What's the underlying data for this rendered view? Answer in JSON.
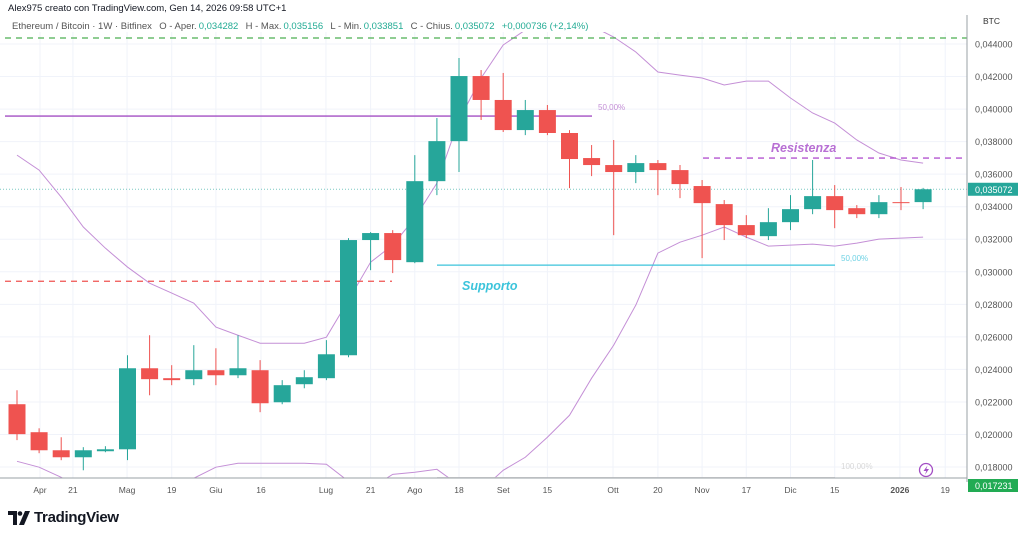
{
  "header": {
    "attribution": "Alex975 creato con TradingView.com, Gen 14, 2026 09:58 UTC+1",
    "symbol": "Ethereum / Bitcoin · 1W · Bitfinex",
    "open_label": "O - Aper.",
    "open": "0,034282",
    "high_label": "H - Max.",
    "high": "0,035156",
    "low_label": "L - Min.",
    "low": "0,033851",
    "close_label": "C - Chius.",
    "close": "0,035072",
    "change": "+0,000736 (+2,14%)"
  },
  "colors": {
    "up": "#26a69a",
    "down": "#ef5350",
    "bands": "#c48fd6",
    "resistance": "#b455d0",
    "support": "#3cc4db",
    "top_line": "#4caf50",
    "bottom_line": "#ef5350",
    "fib_upper": "#a34fc4"
  },
  "price_axis": {
    "unit": "BTC",
    "ticks": [
      "0,044000",
      "0,042000",
      "0,040000",
      "0,038000",
      "0,036000",
      "0,034000",
      "0,032000",
      "0,030000",
      "0,028000",
      "0,026000",
      "0,024000",
      "0,022000",
      "0,020000",
      "0,018000"
    ],
    "current_price": "0,035072",
    "low_marker": "0,017231"
  },
  "time_axis": {
    "labels": [
      "Apr",
      "21",
      "Mag",
      "19",
      "Giu",
      "16",
      "Lug",
      "21",
      "Ago",
      "18",
      "Set",
      "15",
      "Ott",
      "20",
      "Nov",
      "17",
      "Dic",
      "15",
      "2026",
      "19"
    ]
  },
  "annotations": {
    "resistance_label": "Resistenza",
    "support_label": "Supporto",
    "fib_upper_label": "50,00%",
    "fib_support_label": "50,00%",
    "fib_bottom_label": "100,00%"
  },
  "chart_data": {
    "type": "candlestick",
    "ylim": [
      0.0165,
      0.0455
    ],
    "grid": true,
    "candles": [
      {
        "o": 0.02186,
        "h": 0.02272,
        "l": 0.01965,
        "c": 0.02002
      },
      {
        "o": 0.02014,
        "h": 0.02038,
        "l": 0.01885,
        "c": 0.01903
      },
      {
        "o": 0.01903,
        "h": 0.01983,
        "l": 0.01842,
        "c": 0.0186
      },
      {
        "o": 0.0186,
        "h": 0.01922,
        "l": 0.0178,
        "c": 0.01903
      },
      {
        "o": 0.01897,
        "h": 0.01928,
        "l": 0.01891,
        "c": 0.01909
      },
      {
        "o": 0.01909,
        "h": 0.02487,
        "l": 0.01842,
        "c": 0.02407
      },
      {
        "o": 0.02407,
        "h": 0.0261,
        "l": 0.02241,
        "c": 0.0234
      },
      {
        "o": 0.02346,
        "h": 0.02426,
        "l": 0.02303,
        "c": 0.02334
      },
      {
        "o": 0.0234,
        "h": 0.02549,
        "l": 0.02303,
        "c": 0.02395
      },
      {
        "o": 0.02395,
        "h": 0.0253,
        "l": 0.02303,
        "c": 0.02364
      },
      {
        "o": 0.02364,
        "h": 0.0261,
        "l": 0.02346,
        "c": 0.02407
      },
      {
        "o": 0.02395,
        "h": 0.02457,
        "l": 0.02137,
        "c": 0.02192
      },
      {
        "o": 0.02198,
        "h": 0.02334,
        "l": 0.02186,
        "c": 0.02303
      },
      {
        "o": 0.02309,
        "h": 0.02395,
        "l": 0.02284,
        "c": 0.02352
      },
      {
        "o": 0.02346,
        "h": 0.0258,
        "l": 0.02334,
        "c": 0.02493
      },
      {
        "o": 0.02487,
        "h": 0.03207,
        "l": 0.02475,
        "c": 0.03195
      },
      {
        "o": 0.03195,
        "h": 0.03244,
        "l": 0.0301,
        "c": 0.03238
      },
      {
        "o": 0.03238,
        "h": 0.03256,
        "l": 0.02992,
        "c": 0.03072
      },
      {
        "o": 0.03059,
        "h": 0.03717,
        "l": 0.03053,
        "c": 0.03557
      },
      {
        "o": 0.03557,
        "h": 0.03945,
        "l": 0.03471,
        "c": 0.03803
      },
      {
        "o": 0.03803,
        "h": 0.04314,
        "l": 0.03613,
        "c": 0.04203
      },
      {
        "o": 0.04203,
        "h": 0.0424,
        "l": 0.03933,
        "c": 0.04056
      },
      {
        "o": 0.04056,
        "h": 0.04222,
        "l": 0.03859,
        "c": 0.03871
      },
      {
        "o": 0.03871,
        "h": 0.04056,
        "l": 0.0384,
        "c": 0.03994
      },
      {
        "o": 0.03994,
        "h": 0.04025,
        "l": 0.0384,
        "c": 0.03853
      },
      {
        "o": 0.03853,
        "h": 0.03871,
        "l": 0.03514,
        "c": 0.03693
      },
      {
        "o": 0.03699,
        "h": 0.03779,
        "l": 0.03588,
        "c": 0.03656
      },
      {
        "o": 0.03656,
        "h": 0.0381,
        "l": 0.03225,
        "c": 0.03613
      },
      {
        "o": 0.03613,
        "h": 0.03717,
        "l": 0.03545,
        "c": 0.03668
      },
      {
        "o": 0.03668,
        "h": 0.03687,
        "l": 0.03471,
        "c": 0.03625
      },
      {
        "o": 0.03625,
        "h": 0.03656,
        "l": 0.03453,
        "c": 0.03539
      },
      {
        "o": 0.03527,
        "h": 0.03564,
        "l": 0.03084,
        "c": 0.03422
      },
      {
        "o": 0.03416,
        "h": 0.03441,
        "l": 0.03195,
        "c": 0.03287
      },
      {
        "o": 0.03287,
        "h": 0.03348,
        "l": 0.03207,
        "c": 0.03225
      },
      {
        "o": 0.03219,
        "h": 0.03391,
        "l": 0.03195,
        "c": 0.03305
      },
      {
        "o": 0.03305,
        "h": 0.03471,
        "l": 0.03256,
        "c": 0.03385
      },
      {
        "o": 0.03385,
        "h": 0.03687,
        "l": 0.03354,
        "c": 0.03465
      },
      {
        "o": 0.03465,
        "h": 0.03533,
        "l": 0.03268,
        "c": 0.03379
      },
      {
        "o": 0.03391,
        "h": 0.0341,
        "l": 0.0333,
        "c": 0.03354
      },
      {
        "o": 0.03354,
        "h": 0.03471,
        "l": 0.0333,
        "c": 0.03428
      },
      {
        "o": 0.03428,
        "h": 0.03521,
        "l": 0.03379,
        "c": 0.03422
      },
      {
        "o": 0.034282,
        "h": 0.035156,
        "l": 0.033851,
        "c": 0.035072
      }
    ],
    "bollinger_upper": [
      0.03717,
      0.03625,
      0.03459,
      0.03275,
      0.03145,
      0.03029,
      0.0293,
      0.02869,
      0.02807,
      0.0266,
      0.0261,
      0.02561,
      0.02561,
      0.02561,
      0.02598,
      0.02826,
      0.03059,
      0.03164,
      0.0333,
      0.03545,
      0.03933,
      0.04191,
      0.04394,
      0.04486,
      0.04523,
      0.04535,
      0.04511,
      0.04443,
      0.04351,
      0.04228,
      0.04209,
      0.04191,
      0.04148,
      0.04172,
      0.04172,
      0.04068,
      0.03976,
      0.03914,
      0.0381,
      0.0373,
      0.03687,
      0.03668
    ],
    "bollinger_lower": [
      0.01835,
      0.01799,
      0.01737,
      0.01657,
      0.01596,
      0.01565,
      0.01596,
      0.01657,
      0.01731,
      0.01799,
      0.01823,
      0.01823,
      0.01823,
      0.01823,
      0.01817,
      0.01712,
      0.01669,
      0.01755,
      0.01768,
      0.01786,
      0.01688,
      0.01657,
      0.0178,
      0.0186,
      0.01983,
      0.02118,
      0.02346,
      0.02549,
      0.02795,
      0.03115,
      0.03182,
      0.03225,
      0.03275,
      0.03213,
      0.03158,
      0.03164,
      0.0317,
      0.03158,
      0.03176,
      0.03201,
      0.03207,
      0.03213
    ],
    "levels": {
      "top_dashed": 0.04437,
      "fib_upper_50": 0.03957,
      "resistance": 0.03699,
      "support_50": 0.03041,
      "bottom_dashed": 0.02942,
      "fib_100": 0.01735
    }
  }
}
